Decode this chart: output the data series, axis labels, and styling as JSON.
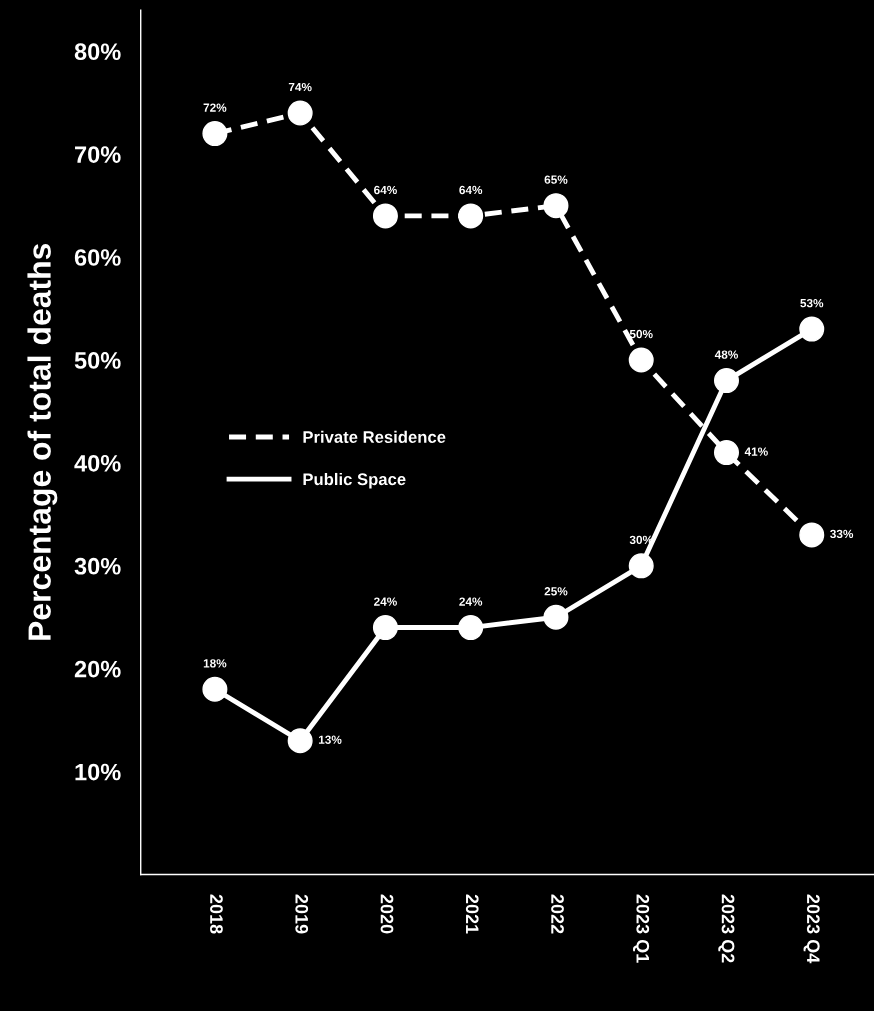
{
  "chart_data": {
    "type": "line",
    "ylabel": "Percentage of total deaths",
    "categories": [
      "2018",
      "2019",
      "2020",
      "2021",
      "2022",
      "2023 Q1",
      "2023 Q2",
      "2023 Q4"
    ],
    "series": [
      {
        "name": "Private Residence",
        "color": "#ffffff",
        "line_style": "dashed",
        "values": [
          72,
          74,
          64,
          64,
          65,
          50,
          41,
          33
        ],
        "value_labels": [
          "72%",
          "74%",
          "64%",
          "64%",
          "65%",
          "50%",
          "41%",
          "33%"
        ]
      },
      {
        "name": "Public Space",
        "color": "#ffffff",
        "line_style": "solid",
        "values": [
          18,
          13,
          24,
          24,
          25,
          30,
          48,
          53
        ],
        "value_labels": [
          "18%",
          "13%",
          "24%",
          "24%",
          "25%",
          "30%",
          "48%",
          "53%"
        ]
      }
    ],
    "ylim": [
      0,
      84
    ],
    "yticks": [
      {
        "value": 10,
        "label": "10%"
      },
      {
        "value": 20,
        "label": "20%"
      },
      {
        "value": 30,
        "label": "30%"
      },
      {
        "value": 40,
        "label": "40%"
      },
      {
        "value": 50,
        "label": "50%"
      },
      {
        "value": 60,
        "label": "60%"
      },
      {
        "value": 70,
        "label": "70%"
      },
      {
        "value": 80,
        "label": "80%"
      }
    ],
    "marker": "circle",
    "grid": false,
    "legend": "left"
  }
}
